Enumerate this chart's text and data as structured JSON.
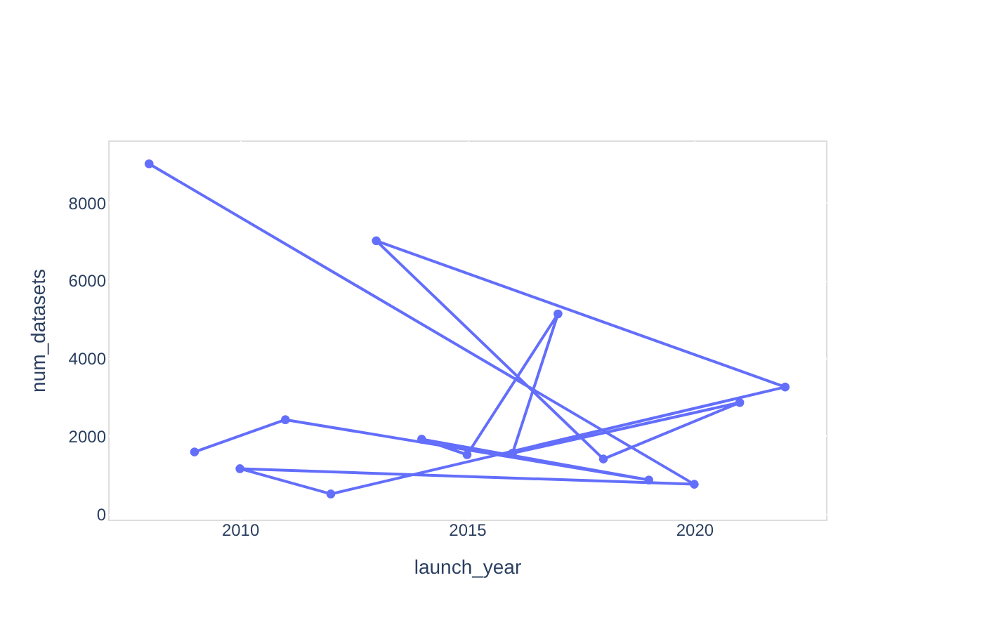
{
  "chart_data": {
    "type": "line",
    "xlabel": "launch_year",
    "ylabel": "num_datasets",
    "x": [
      2008,
      2020,
      2010,
      2012,
      2022,
      2013,
      2018,
      2021,
      2016,
      2017,
      2015,
      2014,
      2019,
      2011,
      2009
    ],
    "series": [
      {
        "color": "#636efa",
        "values": [
          9000,
          760,
          1160,
          510,
          3260,
          7020,
          1410,
          2860,
          1560,
          5140,
          1520,
          1920,
          870,
          2420,
          1590
        ]
      }
    ],
    "xlim": [
      2007.1,
      2022.9
    ],
    "xticks": [
      2010,
      2015,
      2020
    ],
    "ylim": [
      -150,
      9600
    ],
    "yticks": [
      0,
      2000,
      4000,
      6000,
      8000
    ],
    "grid": true,
    "marker": "circle",
    "line_style": "solid"
  }
}
